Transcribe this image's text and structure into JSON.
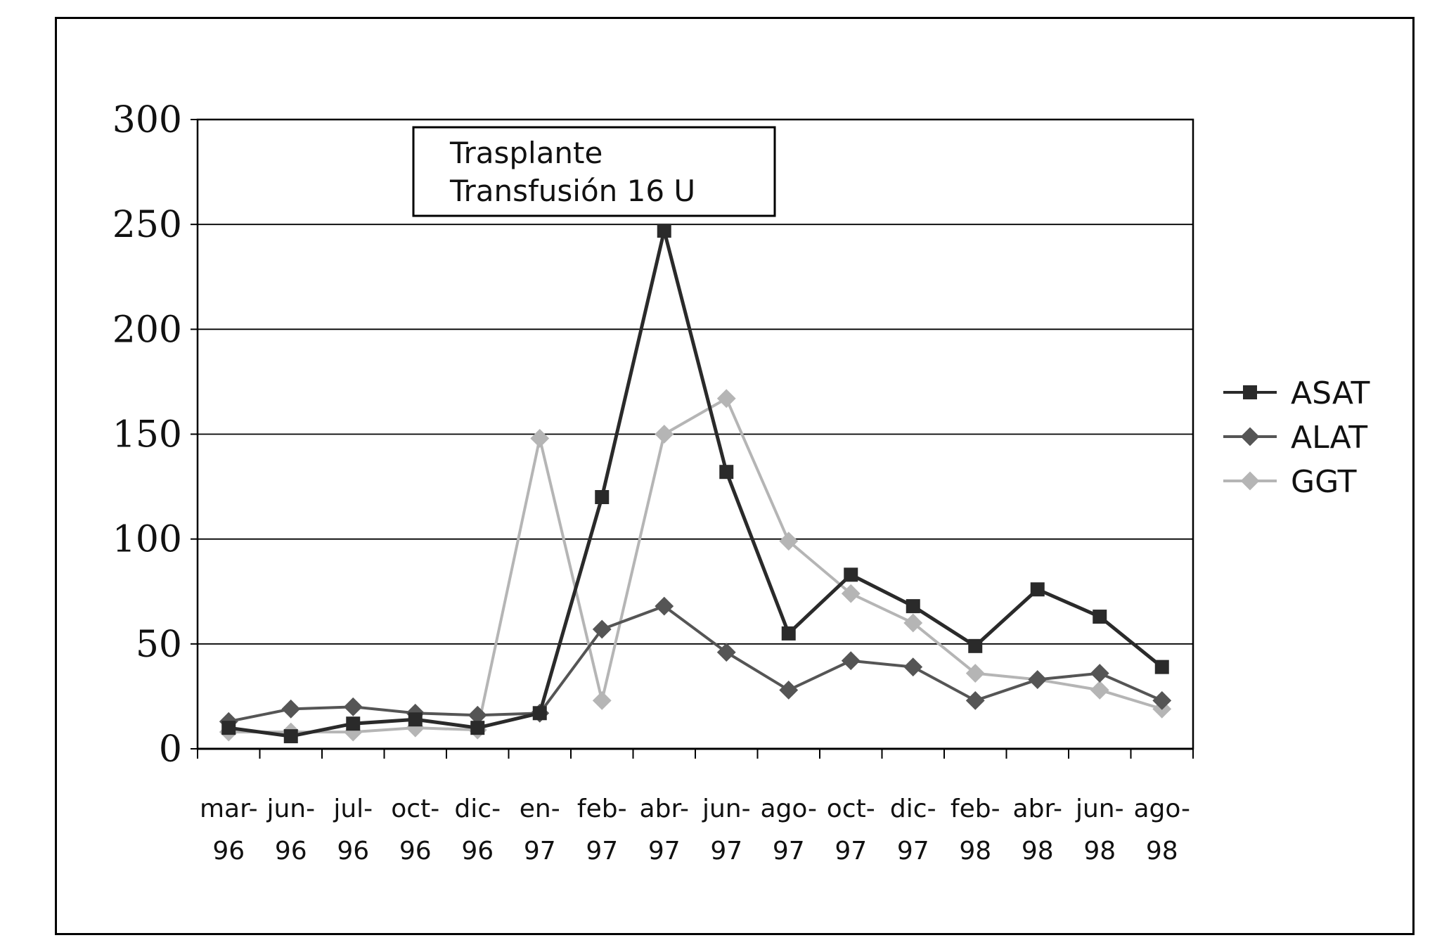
{
  "chart_data": {
    "type": "line",
    "categories": [
      [
        "mar-",
        "96"
      ],
      [
        "jun-",
        "96"
      ],
      [
        "jul-",
        "96"
      ],
      [
        "oct-",
        "96"
      ],
      [
        "dic-",
        "96"
      ],
      [
        "en-",
        "97"
      ],
      [
        "feb-",
        "97"
      ],
      [
        "abr-",
        "97"
      ],
      [
        "jun-",
        "97"
      ],
      [
        "ago-",
        "97"
      ],
      [
        "oct-",
        "97"
      ],
      [
        "dic-",
        "97"
      ],
      [
        "feb-",
        "98"
      ],
      [
        "abr-",
        "98"
      ],
      [
        "jun-",
        "98"
      ],
      [
        "ago-",
        "98"
      ]
    ],
    "ylim": [
      0,
      300
    ],
    "yticks": [
      "0",
      "50",
      "100",
      "150",
      "200",
      "250",
      "300"
    ],
    "grid": true,
    "legend_position": "right",
    "series": [
      {
        "name": "ASAT",
        "color": "#2a2a2a",
        "marker": "square",
        "values": [
          10,
          6,
          12,
          14,
          10,
          17,
          120,
          247,
          132,
          55,
          83,
          68,
          49,
          76,
          63,
          39
        ]
      },
      {
        "name": "ALAT",
        "color": "#555555",
        "marker": "diamond",
        "values": [
          13,
          19,
          20,
          17,
          16,
          17,
          57,
          68,
          46,
          28,
          42,
          39,
          23,
          33,
          36,
          23
        ]
      },
      {
        "name": "GGT",
        "color": "#b5b5b5",
        "marker": "diamond",
        "values": [
          8,
          8,
          8,
          10,
          9,
          148,
          23,
          150,
          167,
          99,
          74,
          60,
          36,
          33,
          28,
          19
        ]
      }
    ],
    "annotation": {
      "line1": "Trasplante",
      "line2": "Transfusión 16 U"
    }
  }
}
